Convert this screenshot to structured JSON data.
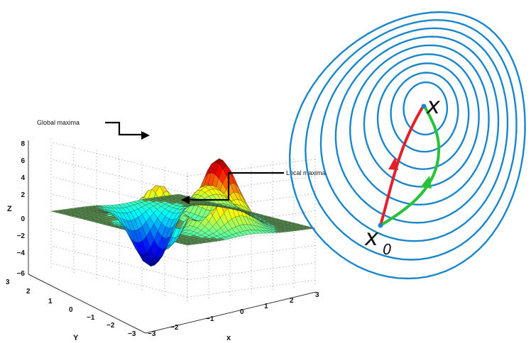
{
  "left_panel": {
    "annotations": {
      "global": "Global maxima",
      "local": "Local maxima"
    },
    "axis_names": {
      "z": "Z",
      "y": "Y",
      "x": "x"
    },
    "z_ticks": [
      "8",
      "6",
      "4",
      "2",
      "0",
      "−2",
      "−4",
      "−6"
    ],
    "y_ticks": [
      "3",
      "2",
      "1",
      "0",
      "−1",
      "−2",
      "−3"
    ],
    "x_ticks": [
      "−3",
      "−2",
      "−1",
      "0",
      "1",
      "2",
      "3"
    ]
  },
  "right_panel": {
    "start_label": {
      "main": "x",
      "sub": "0"
    },
    "end_label": "x",
    "colors": {
      "contour": "#1a86c9",
      "path_red": "#e0202a",
      "path_green": "#28c23a"
    }
  }
}
